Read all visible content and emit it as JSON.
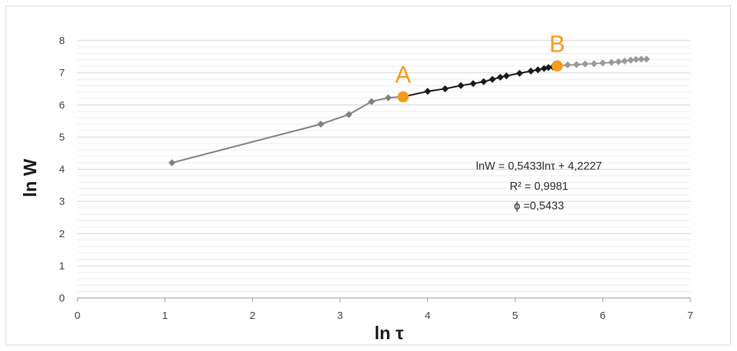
{
  "chart_data": {
    "type": "line",
    "xlabel": "ln  τ",
    "ylabel": "ln W",
    "xlim": [
      0,
      7
    ],
    "ylim": [
      0,
      8
    ],
    "x_ticks": [
      "0",
      "1",
      "2",
      "3",
      "4",
      "5",
      "6",
      "7"
    ],
    "y_ticks": [
      "0",
      "1",
      "2",
      "3",
      "4",
      "5",
      "6",
      "7",
      "8"
    ],
    "grid": "horizontal",
    "series": [
      {
        "color": "#808080",
        "x": [
          1.08,
          2.78,
          3.1,
          3.36,
          3.55,
          3.72
        ],
        "y": [
          4.2,
          5.4,
          5.7,
          6.1,
          6.22,
          6.25
        ]
      },
      {
        "color": "#1a1a1a",
        "x": [
          3.72,
          4.0,
          4.2,
          4.38,
          4.52,
          4.64,
          4.74,
          4.83,
          4.9,
          5.05,
          5.18,
          5.26,
          5.33,
          5.38,
          5.43,
          5.48
        ],
        "y": [
          6.25,
          6.42,
          6.5,
          6.6,
          6.66,
          6.72,
          6.79,
          6.86,
          6.9,
          6.98,
          7.05,
          7.09,
          7.13,
          7.16,
          7.18,
          7.21
        ]
      },
      {
        "color": "#9a9a9a",
        "x": [
          5.48,
          5.6,
          5.7,
          5.8,
          5.9,
          6.0,
          6.1,
          6.18,
          6.25,
          6.32,
          6.38,
          6.44,
          6.5
        ],
        "y": [
          7.21,
          7.24,
          7.25,
          7.27,
          7.28,
          7.3,
          7.32,
          7.34,
          7.36,
          7.39,
          7.41,
          7.42,
          7.42
        ]
      }
    ],
    "highlight_points": [
      {
        "label": "A",
        "x": 3.72,
        "y": 6.25,
        "color": "#f39c1b"
      },
      {
        "label": "B",
        "x": 5.48,
        "y": 7.21,
        "color": "#f39c1b"
      }
    ],
    "annotations": {
      "equation": "lnW = 0,5433lnτ + 4,2227",
      "r_squared": "R² = 0,9981",
      "phi": "ϕ =0,5433"
    }
  }
}
